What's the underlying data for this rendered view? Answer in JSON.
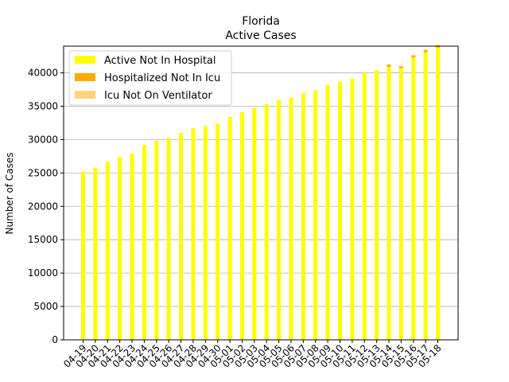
{
  "chart_data": {
    "type": "bar",
    "stacked": true,
    "title": "Florida",
    "subtitle": "Active Cases",
    "xlabel": "",
    "ylabel": "Number of Cases",
    "ylim": [
      0,
      44000
    ],
    "yticks": [
      0,
      5000,
      10000,
      15000,
      20000,
      25000,
      30000,
      35000,
      40000
    ],
    "grid": "y",
    "legend_position": "top-left",
    "categories": [
      "04-19",
      "04-20",
      "04-21",
      "04-22",
      "04-23",
      "04-24",
      "04-25",
      "04-26",
      "04-27",
      "04-28",
      "04-29",
      "04-30",
      "05-01",
      "05-02",
      "05-03",
      "05-04",
      "05-05",
      "05-06",
      "05-07",
      "05-08",
      "05-09",
      "05-10",
      "05-11",
      "05-12",
      "05-13",
      "05-14",
      "05-15",
      "05-16",
      "05-17",
      "05-18"
    ],
    "series": [
      {
        "name": "Active Not In Hospital",
        "color": "#ffff00",
        "values": [
          25200,
          25800,
          26700,
          27400,
          27900,
          29200,
          29800,
          30300,
          31000,
          31700,
          32000,
          32400,
          33400,
          34100,
          34700,
          35300,
          35900,
          36300,
          37000,
          37400,
          38200,
          38700,
          39100,
          40000,
          40400,
          40900,
          40700,
          42300,
          43100,
          43800
        ]
      },
      {
        "name": "Hospitalized Not In Icu",
        "color": "#ffaa00",
        "values": [
          0,
          0,
          0,
          0,
          0,
          0,
          0,
          0,
          0,
          0,
          0,
          0,
          0,
          0,
          0,
          0,
          0,
          0,
          0,
          0,
          0,
          0,
          0,
          0,
          0,
          300,
          250,
          300,
          300,
          300
        ]
      },
      {
        "name": "Icu Not On Ventilator",
        "color": "#ffd37a",
        "values": [
          0,
          0,
          0,
          0,
          0,
          0,
          0,
          0,
          0,
          0,
          0,
          0,
          0,
          0,
          0,
          0,
          0,
          0,
          0,
          0,
          0,
          0,
          0,
          0,
          0,
          100,
          80,
          100,
          100,
          100
        ]
      }
    ]
  }
}
